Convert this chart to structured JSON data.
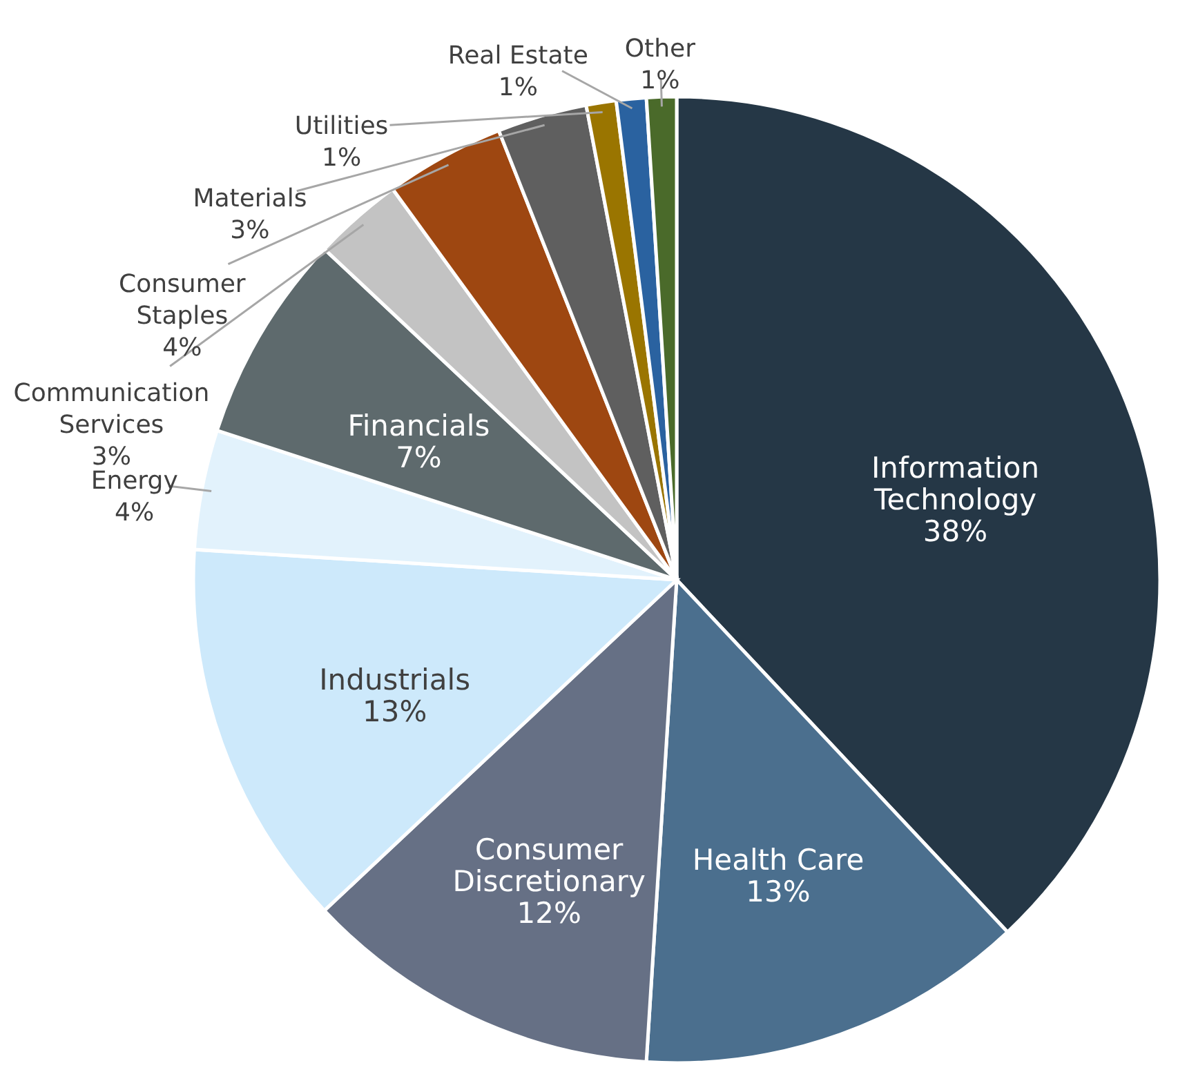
{
  "chart_data": {
    "type": "pie",
    "categories": [
      "Information Technology",
      "Health Care",
      "Consumer Discretionary",
      "Industrials",
      "Energy",
      "Financials",
      "Communication Services",
      "Consumer Staples",
      "Materials",
      "Utilities",
      "Real Estate",
      "Other"
    ],
    "values": [
      38,
      13,
      12,
      13,
      4,
      7,
      3,
      4,
      3,
      1,
      1,
      1
    ],
    "value_labels": [
      "38%",
      "13%",
      "12%",
      "13%",
      "4%",
      "7%",
      "3%",
      "4%",
      "3%",
      "1%",
      "1%",
      "1%"
    ],
    "colors": [
      "#253746",
      "#4b6f8e",
      "#667085",
      "#cde9fb",
      "#e2f2fc",
      "#5e6a6d",
      "#c3c3c3",
      "#9e4711",
      "#5f5f5f",
      "#9a7500",
      "#2a62a0",
      "#4a6a2a"
    ]
  }
}
